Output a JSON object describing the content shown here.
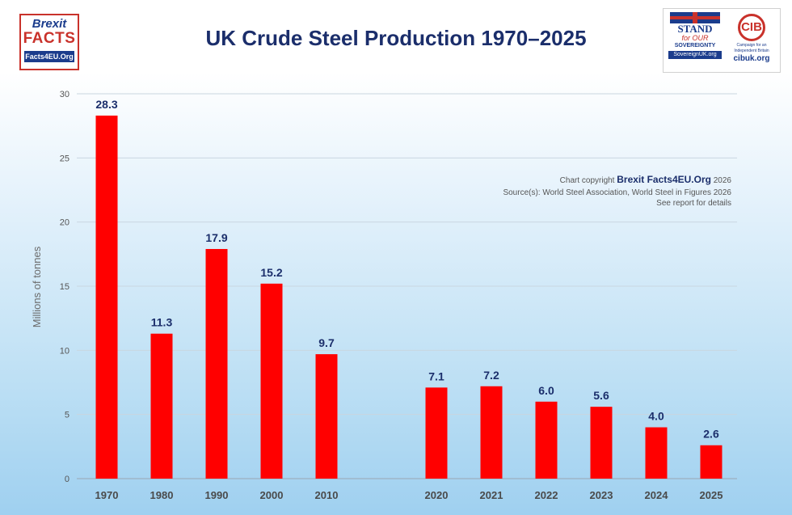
{
  "chart_data": {
    "type": "bar",
    "title": "UK Crude Steel Production 1970–2025",
    "ylabel": "Millions of tonnes",
    "xlabel": "",
    "ylim": [
      0,
      30
    ],
    "yticks": [
      "0",
      "5",
      "10",
      "15",
      "20",
      "25",
      "30"
    ],
    "categories": [
      "1970",
      "1980",
      "1990",
      "2000",
      "2010",
      "2020",
      "2021",
      "2022",
      "2023",
      "2024",
      "2025"
    ],
    "values": [
      28.3,
      11.3,
      17.9,
      15.2,
      9.7,
      7.1,
      7.2,
      6.0,
      5.6,
      4.0,
      2.6
    ],
    "value_labels": [
      "28.3",
      "11.3",
      "17.9",
      "15.2",
      "9.7",
      "7.1",
      "7.2",
      "6.0",
      "5.6",
      "4.0",
      "2.6"
    ],
    "grid": true,
    "bar_color": "#ff0000",
    "annotations": {
      "copyright_prefix": "Chart copyright ",
      "copyright_brand": "Brexit Facts4EU.Org",
      "copyright_suffix": " 2026",
      "source": "Source(s): World Steel Association, World Steel in Figures 2026",
      "details": "See report for details"
    }
  },
  "logos": {
    "left": {
      "line1": "Brexit",
      "line2": "FACTS",
      "line3": "Facts4EU.Org"
    },
    "stand": {
      "line1": "STAND",
      "line2": "for OUR",
      "line3": "SOVEREIGNTY",
      "url": "SovereignUK.org"
    },
    "cib": {
      "mark": "CIB",
      "tagline": "Campaign for an Independent Britain",
      "url": "cibuk.org"
    }
  }
}
